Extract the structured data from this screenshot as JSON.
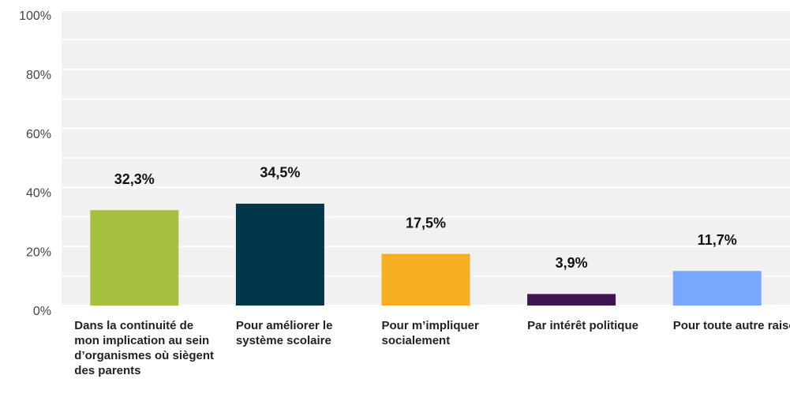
{
  "chart_data": {
    "type": "bar",
    "categories": [
      "Dans la continuité de mon implication au sein d’organismes où siègent des parents",
      "Pour améliorer le système scolaire",
      "Pour m’impliquer socialement",
      "Par intérêt politique",
      "Pour toute autre raison..."
    ],
    "values": [
      32.3,
      34.5,
      17.5,
      3.9,
      11.7
    ],
    "value_labels": [
      "32,3%",
      "34,5%",
      "17,5%",
      "3,9%",
      "11,7%"
    ],
    "colors": [
      "#a5c03f",
      "#00384a",
      "#f6ae22",
      "#3f1651",
      "#77a8fb"
    ],
    "ylim": [
      0,
      100
    ],
    "yticks": [
      {
        "value": 0,
        "label": "0%"
      },
      {
        "value": 20,
        "label": "20%"
      },
      {
        "value": 40,
        "label": "40%"
      },
      {
        "value": 60,
        "label": "60%"
      },
      {
        "value": 80,
        "label": "80%"
      },
      {
        "value": 100,
        "label": "100%"
      }
    ],
    "minor_yticks": [
      10,
      30,
      50,
      70,
      90
    ],
    "grid": true
  }
}
